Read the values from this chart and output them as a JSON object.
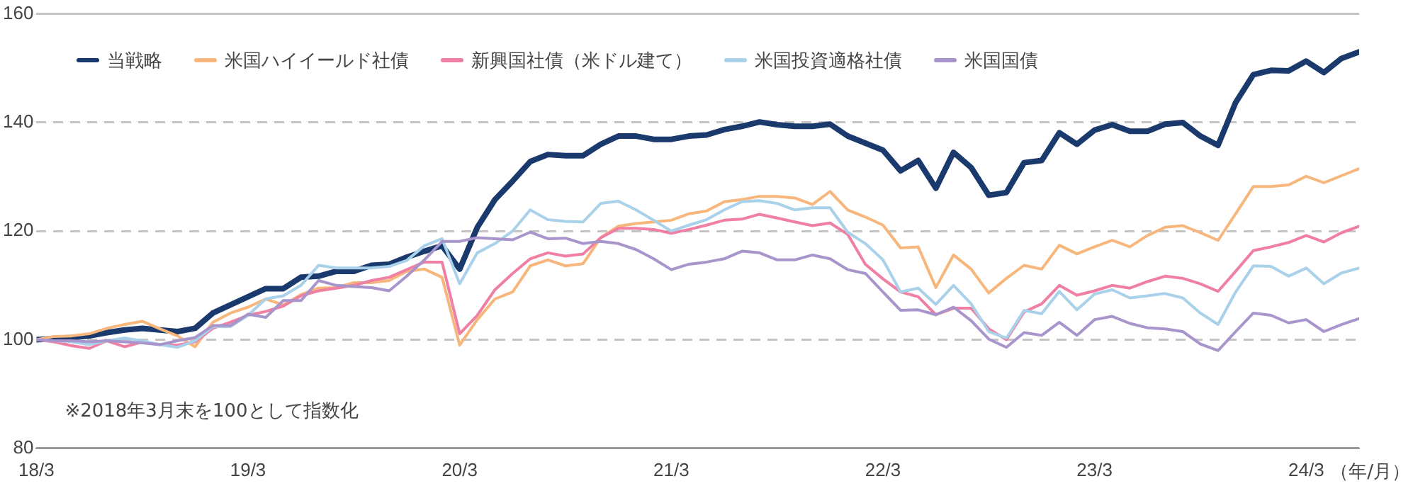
{
  "chart_data": {
    "type": "line",
    "xlabel": "（年/月）",
    "x": [
      "2018-03",
      "2018-04",
      "2018-05",
      "2018-06",
      "2018-07",
      "2018-08",
      "2018-09",
      "2018-10",
      "2018-11",
      "2018-12",
      "2019-01",
      "2019-02",
      "2019-03",
      "2019-04",
      "2019-05",
      "2019-06",
      "2019-07",
      "2019-08",
      "2019-09",
      "2019-10",
      "2019-11",
      "2019-12",
      "2020-01",
      "2020-02",
      "2020-03",
      "2020-04",
      "2020-05",
      "2020-06",
      "2020-07",
      "2020-08",
      "2020-09",
      "2020-10",
      "2020-11",
      "2020-12",
      "2021-01",
      "2021-02",
      "2021-03",
      "2021-04",
      "2021-05",
      "2021-06",
      "2021-07",
      "2021-08",
      "2021-09",
      "2021-10",
      "2021-11",
      "2021-12",
      "2022-01",
      "2022-02",
      "2022-03",
      "2022-04",
      "2022-05",
      "2022-06",
      "2022-07",
      "2022-08",
      "2022-09",
      "2022-10",
      "2022-11",
      "2022-12",
      "2023-01",
      "2023-02",
      "2023-03",
      "2023-04",
      "2023-05",
      "2023-06",
      "2023-07",
      "2023-08",
      "2023-09",
      "2023-10",
      "2023-11",
      "2023-12",
      "2024-01",
      "2024-02",
      "2024-03",
      "2024-04",
      "2024-05",
      "2024-06"
    ],
    "xlim": [
      "2018-03",
      "2024-06"
    ],
    "xticks": [
      {
        "value": "2018-03",
        "label": "18/3"
      },
      {
        "value": "2019-03",
        "label": "19/3"
      },
      {
        "value": "2020-03",
        "label": "20/3"
      },
      {
        "value": "2021-03",
        "label": "21/3"
      },
      {
        "value": "2022-03",
        "label": "22/3"
      },
      {
        "value": "2023-03",
        "label": "23/3"
      },
      {
        "value": "2024-03",
        "label": "24/3"
      }
    ],
    "ylim": [
      80,
      160
    ],
    "yticks": [
      80,
      100,
      120,
      140,
      160
    ],
    "grid": "y",
    "legend": "top left",
    "marker": "none",
    "line_style": "solid",
    "annotations": [
      "※2018年3月末を100として指数化"
    ],
    "series": [
      {
        "name": "当戦略",
        "color": "#1a3a6e",
        "values": [
          100,
          100.2,
          100.4,
          100.7,
          101.3,
          101.8,
          102.1,
          101.8,
          101.5,
          102.1,
          104.9,
          106.4,
          107.9,
          109.4,
          109.4,
          111.5,
          111.7,
          112.6,
          112.6,
          113.7,
          113.9,
          115.2,
          116.3,
          117.3,
          113,
          120.7,
          125.8,
          129.2,
          132.8,
          134.1,
          133.9,
          133.9,
          136,
          137.5,
          137.5,
          136.9,
          136.9,
          137.5,
          137.7,
          138.7,
          139.3,
          140.1,
          139.6,
          139.3,
          139.3,
          139.7,
          137.5,
          136.2,
          134.9,
          131.1,
          133,
          127.9,
          134.5,
          131.7,
          126.6,
          127.1,
          132.6,
          133,
          138.1,
          136,
          138.6,
          139.6,
          138.4,
          138.4,
          139.7,
          140,
          137.5,
          135.8,
          143.7,
          148.8,
          149.6,
          149.5,
          151.3,
          149.2,
          151.8,
          153
        ]
      },
      {
        "name": "米国ハイイールド社債",
        "color": "#f7b77c",
        "values": [
          100,
          100.6,
          100.7,
          101.1,
          102.1,
          102.8,
          103.4,
          102,
          100.7,
          98.7,
          103.2,
          104.9,
          106,
          107.5,
          106.4,
          108.3,
          109.5,
          109.6,
          110.5,
          110.5,
          110.9,
          112.6,
          113,
          111.5,
          99,
          103.7,
          107.5,
          108.8,
          113.6,
          114.7,
          113.6,
          114,
          118.8,
          120.9,
          121.4,
          121.7,
          122,
          123.2,
          123.7,
          125.4,
          125.8,
          126.4,
          126.4,
          126.1,
          124.9,
          127.3,
          123.9,
          122.6,
          121.1,
          116.9,
          117.1,
          109.6,
          115.6,
          113,
          108.6,
          111.3,
          113.7,
          113,
          117.4,
          115.8,
          117.1,
          118.3,
          117.1,
          119.2,
          120.7,
          121,
          119.7,
          118.3,
          123.2,
          128.2,
          128.2,
          128.5,
          130.1,
          128.9,
          130.2,
          131.5
        ]
      },
      {
        "name": "新興国社債（米ドル建て）",
        "color": "#ef7fa3",
        "values": [
          100,
          99.6,
          98.9,
          98.4,
          99.8,
          98.7,
          99.6,
          99.1,
          99,
          99.6,
          102.1,
          103.2,
          104.5,
          105.2,
          106.2,
          108.1,
          109,
          109.5,
          110,
          110.9,
          111.5,
          112.9,
          114.3,
          114.3,
          101.1,
          104.5,
          109.2,
          112.2,
          114.9,
          116,
          115.4,
          115.8,
          118.8,
          120.5,
          120.5,
          120.3,
          119.6,
          120.3,
          121.1,
          122,
          122.2,
          123.1,
          122.4,
          121.7,
          121,
          121.5,
          119.4,
          113.9,
          111.2,
          108.8,
          107.9,
          104.6,
          105.8,
          105.8,
          102,
          100,
          105.1,
          106.6,
          110,
          108.2,
          109,
          110,
          109.5,
          110.7,
          111.7,
          111.3,
          110.3,
          108.9,
          112.6,
          116.4,
          117.1,
          117.9,
          119.2,
          118,
          119.7,
          120.9
        ]
      },
      {
        "name": "米国投資適格社債",
        "color": "#a9d1ea",
        "values": [
          100,
          99.8,
          99.6,
          99.1,
          99.8,
          100.3,
          99.8,
          99.1,
          98.6,
          99.8,
          102.4,
          102.4,
          104.5,
          107.5,
          108.1,
          110,
          113.7,
          113.2,
          113.2,
          113.2,
          113.5,
          114.6,
          117.3,
          118.6,
          110.3,
          116,
          117.7,
          120,
          123.9,
          122.1,
          121.8,
          121.7,
          125.1,
          125.5,
          123.9,
          122,
          120,
          121.1,
          122.1,
          123.9,
          125.4,
          125.6,
          125.1,
          123.9,
          124.3,
          124.3,
          119.8,
          117.7,
          114.7,
          108.8,
          109.5,
          106.5,
          110,
          106.6,
          101.5,
          100.3,
          105.4,
          104.8,
          108.9,
          105.5,
          108.4,
          109.2,
          107.7,
          108.1,
          108.5,
          107.7,
          104.9,
          102.8,
          108.8,
          113.6,
          113.5,
          111.7,
          113.2,
          110.3,
          112.3,
          113.2
        ]
      },
      {
        "name": "米国国債",
        "color": "#a895cc",
        "values": [
          100,
          99.8,
          99.8,
          99.6,
          99.8,
          99.6,
          99.4,
          99.1,
          99.8,
          100.4,
          102.6,
          102.6,
          104.7,
          104.1,
          107.2,
          107.2,
          110.9,
          110,
          109.8,
          109.6,
          109,
          111.7,
          114.7,
          118.1,
          118.1,
          118.8,
          118.6,
          118.4,
          119.8,
          118.6,
          118.7,
          117.7,
          118.1,
          117.7,
          116.6,
          114.9,
          112.9,
          113.9,
          114.3,
          114.9,
          116.3,
          116,
          114.7,
          114.7,
          115.6,
          114.9,
          112.9,
          112.2,
          108.8,
          105.4,
          105.5,
          104.6,
          106,
          103.5,
          100.1,
          98.6,
          101.3,
          100.8,
          103.2,
          100.8,
          103.7,
          104.3,
          103,
          102.2,
          102,
          101.5,
          99.2,
          98,
          101.5,
          104.9,
          104.5,
          103.1,
          103.7,
          101.5,
          102.8,
          103.9
        ]
      }
    ]
  }
}
